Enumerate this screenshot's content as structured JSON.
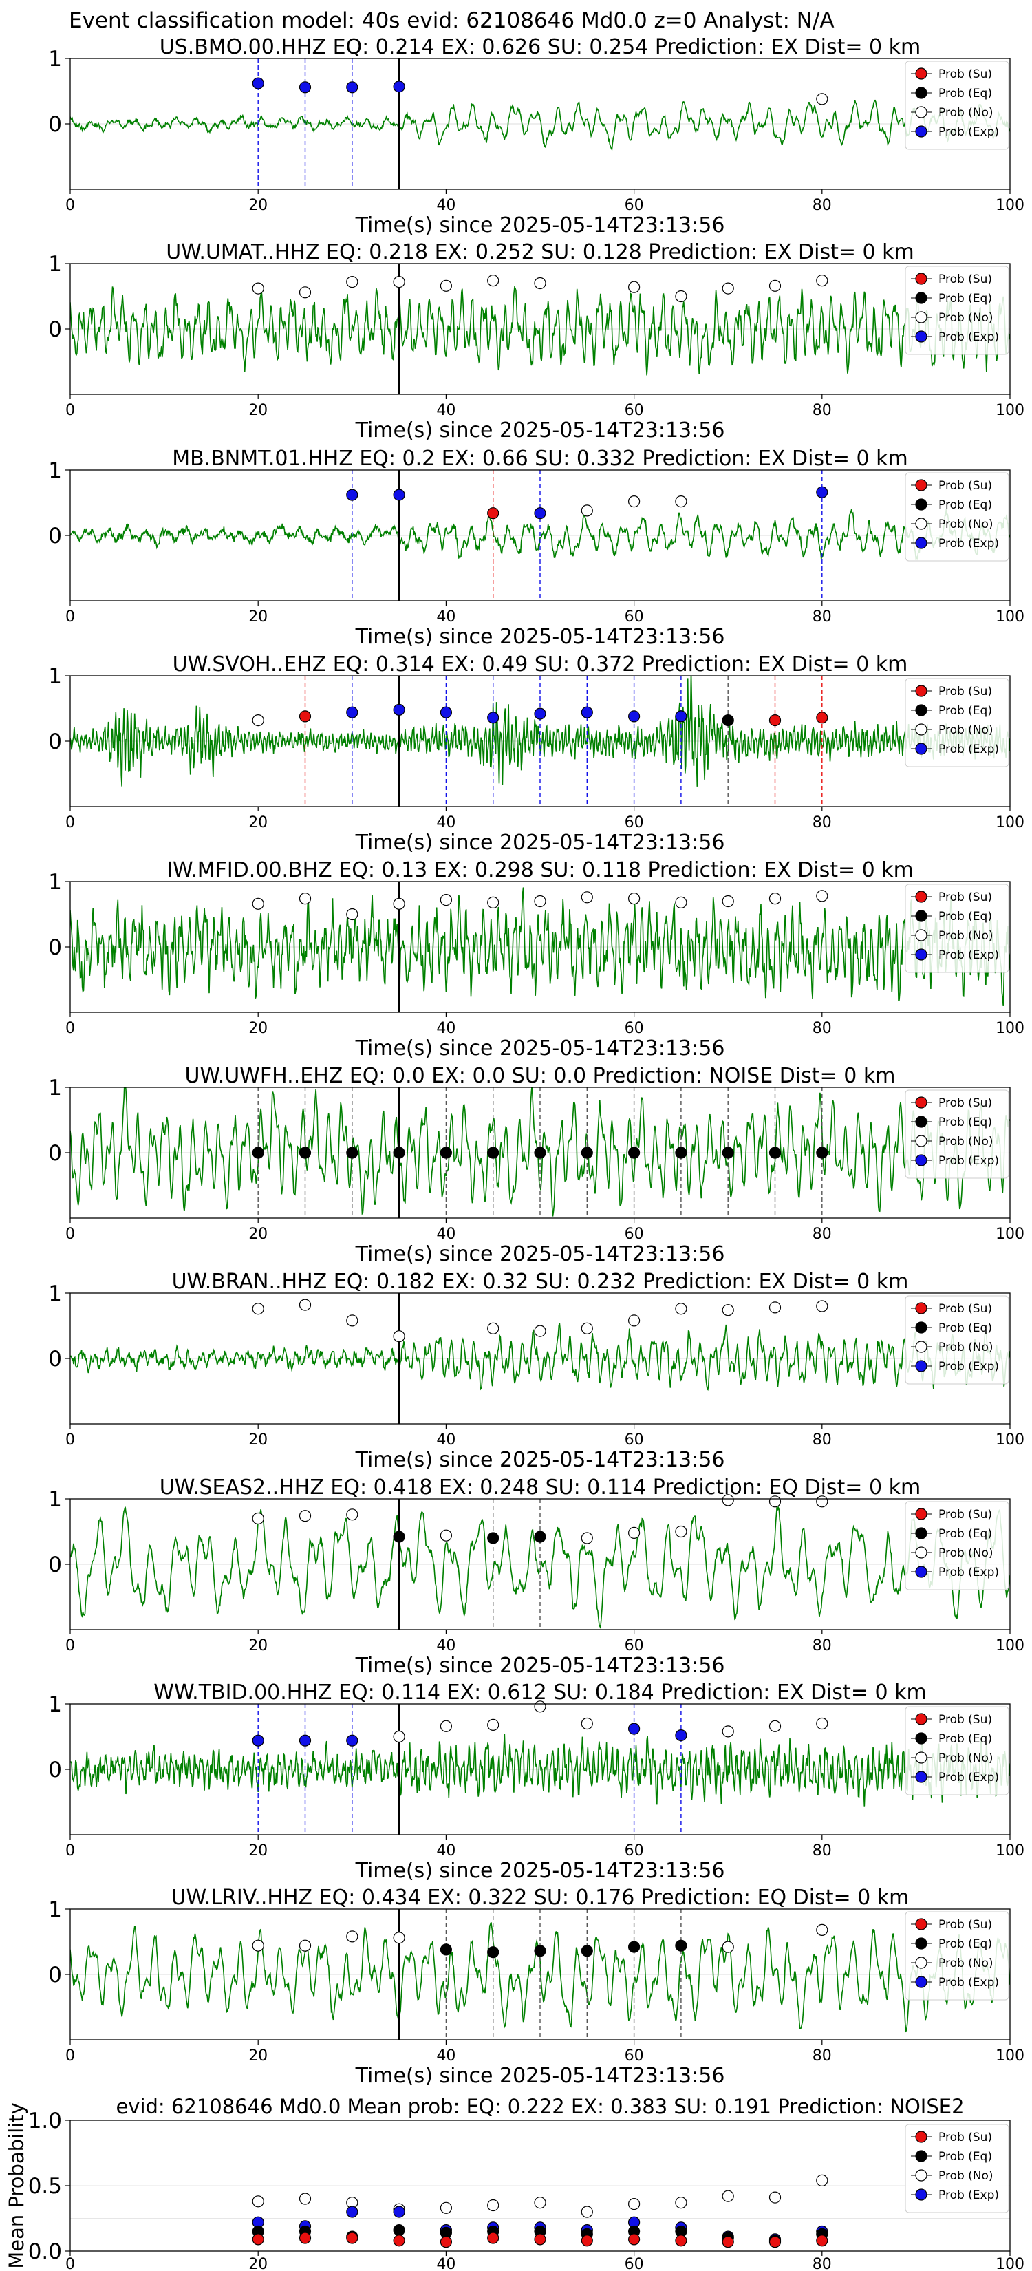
{
  "page": {
    "title": "Event classification model: 40s evid: 62108646 Md0.0 z=0 Analyst: N/A"
  },
  "legend_labels": [
    "Prob (Su)",
    "Prob (Eq)",
    "Prob (No)",
    "Prob (Exp)"
  ],
  "colors": {
    "waveform": "#008000",
    "su": "#e8100f",
    "eq": "#000000",
    "no": "#ffffff",
    "exp": "#1010e8",
    "arrival": "#000000"
  },
  "chart_data": [
    {
      "type": "line",
      "title": "US.BMO.00.HHZ    EQ: 0.214   EX: 0.626   SU: 0.254    Prediction: EX     Dist= 0 km",
      "xlabel": "Time(s) since 2025-05-14T23:13:56",
      "xlim": [
        0,
        100
      ],
      "ylim": [
        -1,
        1
      ],
      "xticks": [
        0,
        20,
        40,
        60,
        80,
        100
      ],
      "yticks": [
        1,
        0
      ],
      "arrival_time": 35,
      "waveform": {
        "seed": 11,
        "base": 0.1,
        "post": 0.3,
        "noise": 0.03,
        "freq": 0.45
      },
      "markers": [
        {
          "t": 20,
          "p": 0.62,
          "cls": "exp"
        },
        {
          "t": 25,
          "p": 0.56,
          "cls": "exp"
        },
        {
          "t": 30,
          "p": 0.56,
          "cls": "exp"
        },
        {
          "t": 35,
          "p": 0.57,
          "cls": "exp"
        },
        {
          "t": 80,
          "p": 0.38,
          "cls": "no"
        }
      ]
    },
    {
      "type": "line",
      "title": "UW.UMAT..HHZ    EQ: 0.218   EX: 0.252   SU: 0.128    Prediction: EX     Dist= 0 km",
      "xlabel": "Time(s) since 2025-05-14T23:13:56",
      "xlim": [
        0,
        100
      ],
      "ylim": [
        -1,
        1
      ],
      "xticks": [
        0,
        20,
        40,
        60,
        80,
        100
      ],
      "yticks": [
        1,
        0
      ],
      "arrival_time": 35,
      "waveform": {
        "seed": 23,
        "base": 0.5,
        "post": 0.55,
        "noise": 0.1,
        "freq": 0.9
      },
      "markers": [
        {
          "t": 20,
          "p": 0.62,
          "cls": "no"
        },
        {
          "t": 25,
          "p": 0.56,
          "cls": "no"
        },
        {
          "t": 30,
          "p": 0.72,
          "cls": "no"
        },
        {
          "t": 35,
          "p": 0.72,
          "cls": "no"
        },
        {
          "t": 40,
          "p": 0.66,
          "cls": "no"
        },
        {
          "t": 45,
          "p": 0.74,
          "cls": "no"
        },
        {
          "t": 50,
          "p": 0.7,
          "cls": "no"
        },
        {
          "t": 60,
          "p": 0.64,
          "cls": "no"
        },
        {
          "t": 65,
          "p": 0.5,
          "cls": "no"
        },
        {
          "t": 70,
          "p": 0.62,
          "cls": "no"
        },
        {
          "t": 75,
          "p": 0.66,
          "cls": "no"
        },
        {
          "t": 80,
          "p": 0.74,
          "cls": "no"
        }
      ]
    },
    {
      "type": "line",
      "title": "MB.BNMT.01.HHZ    EQ: 0.2   EX: 0.66   SU: 0.332    Prediction: EX     Dist= 0 km",
      "xlabel": "Time(s) since 2025-05-14T23:13:56",
      "xlim": [
        0,
        100
      ],
      "ylim": [
        -1,
        1
      ],
      "xticks": [
        0,
        20,
        40,
        60,
        80,
        100
      ],
      "yticks": [
        1,
        0
      ],
      "arrival_time": 35,
      "waveform": {
        "seed": 37,
        "base": 0.12,
        "post": 0.3,
        "noise": 0.05,
        "freq": 0.5
      },
      "markers": [
        {
          "t": 30,
          "p": 0.62,
          "cls": "exp"
        },
        {
          "t": 35,
          "p": 0.62,
          "cls": "exp"
        },
        {
          "t": 45,
          "p": 0.34,
          "cls": "su"
        },
        {
          "t": 50,
          "p": 0.34,
          "cls": "exp"
        },
        {
          "t": 55,
          "p": 0.38,
          "cls": "no"
        },
        {
          "t": 60,
          "p": 0.52,
          "cls": "no"
        },
        {
          "t": 65,
          "p": 0.52,
          "cls": "no"
        },
        {
          "t": 80,
          "p": 0.66,
          "cls": "exp"
        }
      ]
    },
    {
      "type": "line",
      "title": "UW.SVOH..EHZ    EQ: 0.314   EX: 0.49   SU: 0.372    Prediction: EX     Dist= 0 km",
      "xlabel": "Time(s) since 2025-05-14T23:13:56",
      "xlim": [
        0,
        100
      ],
      "ylim": [
        -1,
        1
      ],
      "xticks": [
        0,
        20,
        40,
        60,
        80,
        100
      ],
      "yticks": [
        1,
        0
      ],
      "arrival_time": 35,
      "waveform": {
        "seed": 41,
        "base": 0.15,
        "post": 0.25,
        "noise": 0.04,
        "freq": 2.5,
        "bursts": [
          [
            5,
            0.8
          ],
          [
            13,
            0.6
          ],
          [
            45,
            0.6
          ],
          [
            65,
            0.9
          ]
        ]
      },
      "markers": [
        {
          "t": 20,
          "p": 0.32,
          "cls": "no"
        },
        {
          "t": 25,
          "p": 0.38,
          "cls": "su"
        },
        {
          "t": 30,
          "p": 0.44,
          "cls": "exp"
        },
        {
          "t": 35,
          "p": 0.48,
          "cls": "exp"
        },
        {
          "t": 40,
          "p": 0.44,
          "cls": "exp"
        },
        {
          "t": 45,
          "p": 0.36,
          "cls": "exp"
        },
        {
          "t": 50,
          "p": 0.42,
          "cls": "exp"
        },
        {
          "t": 55,
          "p": 0.44,
          "cls": "exp"
        },
        {
          "t": 60,
          "p": 0.38,
          "cls": "exp"
        },
        {
          "t": 65,
          "p": 0.38,
          "cls": "exp"
        },
        {
          "t": 70,
          "p": 0.32,
          "cls": "eq"
        },
        {
          "t": 75,
          "p": 0.32,
          "cls": "su"
        },
        {
          "t": 80,
          "p": 0.36,
          "cls": "su"
        }
      ]
    },
    {
      "type": "line",
      "title": "IW.MFID.00.BHZ    EQ: 0.13   EX: 0.298   SU: 0.118    Prediction: EX     Dist= 0 km",
      "xlabel": "Time(s) since 2025-05-14T23:13:56",
      "xlim": [
        0,
        100
      ],
      "ylim": [
        -1,
        1
      ],
      "xticks": [
        0,
        20,
        40,
        60,
        80,
        100
      ],
      "yticks": [
        1,
        0
      ],
      "arrival_time": 35,
      "waveform": {
        "seed": 53,
        "base": 0.55,
        "post": 0.6,
        "noise": 0.2,
        "freq": 1.2
      },
      "markers": [
        {
          "t": 20,
          "p": 0.66,
          "cls": "no"
        },
        {
          "t": 25,
          "p": 0.74,
          "cls": "no"
        },
        {
          "t": 30,
          "p": 0.5,
          "cls": "no"
        },
        {
          "t": 35,
          "p": 0.66,
          "cls": "no"
        },
        {
          "t": 40,
          "p": 0.72,
          "cls": "no"
        },
        {
          "t": 45,
          "p": 0.68,
          "cls": "no"
        },
        {
          "t": 50,
          "p": 0.7,
          "cls": "no"
        },
        {
          "t": 55,
          "p": 0.76,
          "cls": "no"
        },
        {
          "t": 60,
          "p": 0.74,
          "cls": "no"
        },
        {
          "t": 65,
          "p": 0.68,
          "cls": "no"
        },
        {
          "t": 70,
          "p": 0.7,
          "cls": "no"
        },
        {
          "t": 75,
          "p": 0.74,
          "cls": "no"
        },
        {
          "t": 80,
          "p": 0.78,
          "cls": "no"
        }
      ]
    },
    {
      "type": "line",
      "title": "UW.UWFH..EHZ    EQ: 0.0   EX: 0.0   SU: 0.0    Prediction: NOISE     Dist= 0 km",
      "xlabel": "Time(s) since 2025-05-14T23:13:56",
      "xlim": [
        0,
        100
      ],
      "ylim": [
        -1,
        1
      ],
      "xticks": [
        0,
        20,
        40,
        60,
        80,
        100
      ],
      "yticks": [
        1,
        0
      ],
      "arrival_time": 35,
      "waveform": {
        "seed": 67,
        "base": 0.75,
        "post": 0.75,
        "noise": 0.05,
        "freq": 0.7
      },
      "markers": [
        {
          "t": 20,
          "p": 0.0,
          "cls": "eq"
        },
        {
          "t": 25,
          "p": 0.0,
          "cls": "eq"
        },
        {
          "t": 30,
          "p": 0.0,
          "cls": "eq"
        },
        {
          "t": 35,
          "p": 0.0,
          "cls": "eq"
        },
        {
          "t": 40,
          "p": 0.0,
          "cls": "eq"
        },
        {
          "t": 45,
          "p": 0.0,
          "cls": "eq"
        },
        {
          "t": 50,
          "p": 0.0,
          "cls": "eq"
        },
        {
          "t": 55,
          "p": 0.0,
          "cls": "eq"
        },
        {
          "t": 60,
          "p": 0.0,
          "cls": "eq"
        },
        {
          "t": 65,
          "p": 0.0,
          "cls": "eq"
        },
        {
          "t": 70,
          "p": 0.0,
          "cls": "eq"
        },
        {
          "t": 75,
          "p": 0.0,
          "cls": "eq"
        },
        {
          "t": 80,
          "p": 0.0,
          "cls": "eq"
        }
      ]
    },
    {
      "type": "line",
      "title": "UW.BRAN..HHZ    EQ: 0.182   EX: 0.32   SU: 0.232    Prediction: EX     Dist= 0 km",
      "xlabel": "Time(s) since 2025-05-14T23:13:56",
      "xlim": [
        0,
        100
      ],
      "ylim": [
        -1,
        1
      ],
      "xticks": [
        0,
        20,
        40,
        60,
        80,
        100
      ],
      "yticks": [
        1,
        0
      ],
      "arrival_time": 35,
      "waveform": {
        "seed": 79,
        "base": 0.15,
        "post": 0.4,
        "noise": 0.06,
        "freq": 0.8
      },
      "markers": [
        {
          "t": 20,
          "p": 0.76,
          "cls": "no"
        },
        {
          "t": 25,
          "p": 0.82,
          "cls": "no"
        },
        {
          "t": 30,
          "p": 0.58,
          "cls": "no"
        },
        {
          "t": 35,
          "p": 0.34,
          "cls": "no"
        },
        {
          "t": 45,
          "p": 0.46,
          "cls": "no"
        },
        {
          "t": 50,
          "p": 0.42,
          "cls": "no"
        },
        {
          "t": 55,
          "p": 0.46,
          "cls": "no"
        },
        {
          "t": 60,
          "p": 0.58,
          "cls": "no"
        },
        {
          "t": 65,
          "p": 0.76,
          "cls": "no"
        },
        {
          "t": 70,
          "p": 0.74,
          "cls": "no"
        },
        {
          "t": 75,
          "p": 0.78,
          "cls": "no"
        },
        {
          "t": 80,
          "p": 0.8,
          "cls": "no"
        }
      ]
    },
    {
      "type": "line",
      "title": "UW.SEAS2..HHZ    EQ: 0.418   EX: 0.248   SU: 0.114    Prediction: EQ     Dist= 0 km",
      "xlabel": "Time(s) since 2025-05-14T23:13:56",
      "xlim": [
        0,
        100
      ],
      "ylim": [
        -1,
        1
      ],
      "xticks": [
        0,
        20,
        40,
        60,
        80,
        100
      ],
      "yticks": [
        1,
        0
      ],
      "arrival_time": 35,
      "waveform": {
        "seed": 83,
        "base": 0.75,
        "post": 0.75,
        "noise": 0.02,
        "freq": 0.35
      },
      "markers": [
        {
          "t": 20,
          "p": 0.7,
          "cls": "no"
        },
        {
          "t": 25,
          "p": 0.74,
          "cls": "no"
        },
        {
          "t": 30,
          "p": 0.76,
          "cls": "no"
        },
        {
          "t": 35,
          "p": 0.42,
          "cls": "eq"
        },
        {
          "t": 40,
          "p": 0.44,
          "cls": "no"
        },
        {
          "t": 45,
          "p": 0.4,
          "cls": "eq"
        },
        {
          "t": 50,
          "p": 0.42,
          "cls": "eq"
        },
        {
          "t": 55,
          "p": 0.4,
          "cls": "no"
        },
        {
          "t": 60,
          "p": 0.48,
          "cls": "no"
        },
        {
          "t": 65,
          "p": 0.5,
          "cls": "no"
        },
        {
          "t": 70,
          "p": 0.98,
          "cls": "no"
        },
        {
          "t": 75,
          "p": 0.96,
          "cls": "no"
        },
        {
          "t": 80,
          "p": 0.96,
          "cls": "no"
        }
      ]
    },
    {
      "type": "line",
      "title": "WW.TBID.00.HHZ    EQ: 0.114   EX: 0.612   SU: 0.184    Prediction: EX     Dist= 0 km",
      "xlabel": "Time(s) since 2025-05-14T23:13:56",
      "xlim": [
        0,
        100
      ],
      "ylim": [
        -1,
        1
      ],
      "xticks": [
        0,
        20,
        40,
        60,
        80,
        100
      ],
      "yticks": [
        1,
        0
      ],
      "arrival_time": 35,
      "waveform": {
        "seed": 97,
        "base": 0.25,
        "post": 0.4,
        "noise": 0.12,
        "freq": 1.6
      },
      "markers": [
        {
          "t": 20,
          "p": 0.44,
          "cls": "exp"
        },
        {
          "t": 25,
          "p": 0.44,
          "cls": "exp"
        },
        {
          "t": 30,
          "p": 0.44,
          "cls": "exp"
        },
        {
          "t": 35,
          "p": 0.5,
          "cls": "no"
        },
        {
          "t": 40,
          "p": 0.66,
          "cls": "no"
        },
        {
          "t": 45,
          "p": 0.68,
          "cls": "no"
        },
        {
          "t": 50,
          "p": 0.96,
          "cls": "no"
        },
        {
          "t": 55,
          "p": 0.7,
          "cls": "no"
        },
        {
          "t": 60,
          "p": 0.62,
          "cls": "exp"
        },
        {
          "t": 65,
          "p": 0.52,
          "cls": "exp"
        },
        {
          "t": 70,
          "p": 0.58,
          "cls": "no"
        },
        {
          "t": 75,
          "p": 0.66,
          "cls": "no"
        },
        {
          "t": 80,
          "p": 0.7,
          "cls": "no"
        }
      ]
    },
    {
      "type": "line",
      "title": "UW.LRIV..HHZ    EQ: 0.434   EX: 0.322   SU: 0.176    Prediction: EQ     Dist= 0 km",
      "xlabel": "Time(s) since 2025-05-14T23:13:56",
      "xlim": [
        0,
        100
      ],
      "ylim": [
        -1,
        1
      ],
      "xticks": [
        0,
        20,
        40,
        60,
        80,
        100
      ],
      "yticks": [
        1,
        0
      ],
      "arrival_time": 35,
      "waveform": {
        "seed": 101,
        "base": 0.65,
        "post": 0.7,
        "noise": 0.03,
        "freq": 0.45
      },
      "markers": [
        {
          "t": 20,
          "p": 0.44,
          "cls": "no"
        },
        {
          "t": 25,
          "p": 0.44,
          "cls": "no"
        },
        {
          "t": 30,
          "p": 0.58,
          "cls": "no"
        },
        {
          "t": 35,
          "p": 0.56,
          "cls": "no"
        },
        {
          "t": 40,
          "p": 0.38,
          "cls": "eq"
        },
        {
          "t": 45,
          "p": 0.34,
          "cls": "eq"
        },
        {
          "t": 50,
          "p": 0.36,
          "cls": "eq"
        },
        {
          "t": 55,
          "p": 0.36,
          "cls": "eq"
        },
        {
          "t": 60,
          "p": 0.42,
          "cls": "eq"
        },
        {
          "t": 65,
          "p": 0.44,
          "cls": "eq"
        },
        {
          "t": 70,
          "p": 0.42,
          "cls": "no"
        },
        {
          "t": 80,
          "p": 0.68,
          "cls": "no"
        }
      ]
    },
    {
      "type": "scatter",
      "title": "evid: 62108646  Md0.0    Mean prob:    EQ: 0.222   EX: 0.383   SU: 0.191    Prediction: NOISE2",
      "ylabel": "Mean Probability",
      "xlim": [
        0,
        100
      ],
      "ylim": [
        0,
        1
      ],
      "xticks": [
        0,
        20,
        40,
        60,
        80,
        100
      ],
      "yticks": [
        1.0,
        0.5,
        0.0
      ],
      "x": [
        20,
        25,
        30,
        35,
        40,
        45,
        50,
        55,
        60,
        65,
        70,
        75,
        80
      ],
      "series": [
        {
          "name": "Prob (No)",
          "cls": "no",
          "values": [
            0.38,
            0.4,
            0.37,
            0.32,
            0.33,
            0.35,
            0.37,
            0.3,
            0.36,
            0.37,
            0.42,
            0.41,
            0.54
          ]
        },
        {
          "name": "Prob (Exp)",
          "cls": "exp",
          "values": [
            0.22,
            0.19,
            0.3,
            0.3,
            0.16,
            0.18,
            0.18,
            0.16,
            0.22,
            0.18,
            0.11,
            0.09,
            0.15
          ]
        },
        {
          "name": "Prob (Eq)",
          "cls": "eq",
          "values": [
            0.15,
            0.15,
            0.11,
            0.16,
            0.14,
            0.15,
            0.15,
            0.13,
            0.15,
            0.15,
            0.1,
            0.08,
            0.13
          ]
        },
        {
          "name": "Prob (Su)",
          "cls": "su",
          "values": [
            0.09,
            0.1,
            0.1,
            0.08,
            0.07,
            0.1,
            0.09,
            0.08,
            0.09,
            0.08,
            0.07,
            0.07,
            0.08
          ]
        }
      ]
    }
  ]
}
